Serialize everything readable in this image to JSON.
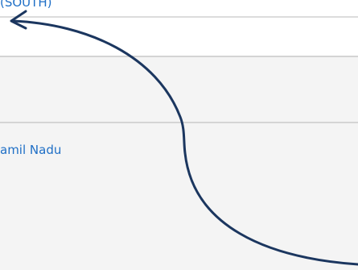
{
  "rows": {
    "top_link": "(SOUTH)",
    "state_link": "amil Nadu"
  },
  "annotation": {
    "icon": "curved-arrow-icon",
    "color": "#1b365f"
  }
}
